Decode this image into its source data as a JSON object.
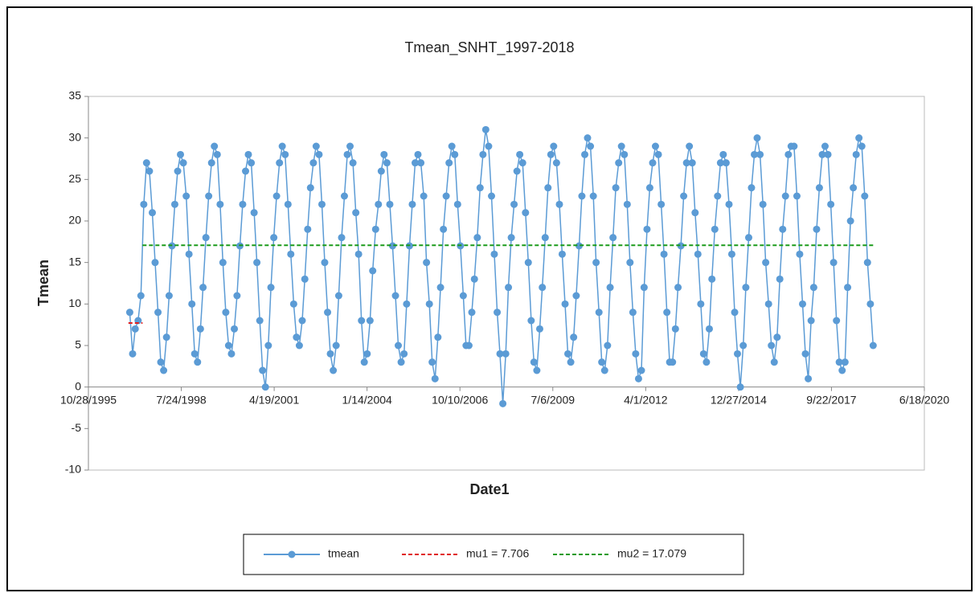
{
  "chart_data": {
    "type": "line",
    "title": "Tmean_SNHT_1997-2018",
    "x_label": "Date1",
    "y_label": "Tmean",
    "xlim": [
      "10/28/1995",
      "6/18/2020"
    ],
    "xticks": [
      "10/28/1995",
      "7/24/1998",
      "4/19/2001",
      "1/14/2004",
      "10/10/2006",
      "7/6/2009",
      "4/1/2012",
      "12/27/2014",
      "9/22/2017",
      "6/18/2020"
    ],
    "ylim": [
      -10,
      35
    ],
    "yticks": [
      -10,
      -5,
      0,
      5,
      10,
      15,
      20,
      25,
      30,
      35
    ],
    "legend": "bottom",
    "series": [
      {
        "name": "tmean",
        "color": "#5b9bd5",
        "style": "marker-line",
        "x": [
          "1/15/1997",
          "2/15/1997",
          "3/15/1997",
          "4/15/1997",
          "5/15/1997",
          "6/15/1997",
          "7/15/1997",
          "8/15/1997",
          "9/15/1997",
          "10/15/1997",
          "11/15/1997",
          "12/15/1997",
          "1/15/1998",
          "2/15/1998",
          "3/15/1998",
          "4/15/1998",
          "5/15/1998",
          "6/15/1998",
          "7/15/1998",
          "8/15/1998",
          "9/15/1998",
          "10/15/1998",
          "11/15/1998",
          "12/15/1998",
          "1/15/1999",
          "2/15/1999",
          "3/15/1999",
          "4/15/1999",
          "5/15/1999",
          "6/15/1999",
          "7/15/1999",
          "8/15/1999",
          "9/15/1999",
          "10/15/1999",
          "11/15/1999",
          "12/15/1999",
          "1/15/2000",
          "2/15/2000",
          "3/15/2000",
          "4/15/2000",
          "5/15/2000",
          "6/15/2000",
          "7/15/2000",
          "8/15/2000",
          "9/15/2000",
          "10/15/2000",
          "11/15/2000",
          "12/15/2000",
          "1/15/2001",
          "2/15/2001",
          "3/15/2001",
          "4/15/2001",
          "5/15/2001",
          "6/15/2001",
          "7/15/2001",
          "8/15/2001",
          "9/15/2001",
          "10/15/2001",
          "11/15/2001",
          "12/15/2001",
          "1/15/2002",
          "2/15/2002",
          "3/15/2002",
          "4/15/2002",
          "5/15/2002",
          "6/15/2002",
          "7/15/2002",
          "8/15/2002",
          "9/15/2002",
          "10/15/2002",
          "11/15/2002",
          "12/15/2002",
          "1/15/2003",
          "2/15/2003",
          "3/15/2003",
          "4/15/2003",
          "5/15/2003",
          "6/15/2003",
          "7/15/2003",
          "8/15/2003",
          "9/15/2003",
          "10/15/2003",
          "11/15/2003",
          "12/15/2003",
          "1/15/2004",
          "2/15/2004",
          "3/15/2004",
          "4/15/2004",
          "5/15/2004",
          "6/15/2004",
          "7/15/2004",
          "8/15/2004",
          "9/15/2004",
          "10/15/2004",
          "11/15/2004",
          "12/15/2004",
          "1/15/2005",
          "2/15/2005",
          "3/15/2005",
          "4/15/2005",
          "5/15/2005",
          "6/15/2005",
          "7/15/2005",
          "8/15/2005",
          "9/15/2005",
          "10/15/2005",
          "11/15/2005",
          "12/15/2005",
          "1/15/2006",
          "2/15/2006",
          "3/15/2006",
          "4/15/2006",
          "5/15/2006",
          "6/15/2006",
          "7/15/2006",
          "8/15/2006",
          "9/15/2006",
          "10/15/2006",
          "11/15/2006",
          "12/15/2006",
          "1/15/2007",
          "2/15/2007",
          "3/15/2007",
          "4/15/2007",
          "5/15/2007",
          "6/15/2007",
          "7/15/2007",
          "8/15/2007",
          "9/15/2007",
          "10/15/2007",
          "11/15/2007",
          "12/15/2007",
          "1/15/2008",
          "2/15/2008",
          "3/15/2008",
          "4/15/2008",
          "5/15/2008",
          "6/15/2008",
          "7/15/2008",
          "8/15/2008",
          "9/15/2008",
          "10/15/2008",
          "11/15/2008",
          "12/15/2008",
          "1/15/2009",
          "2/15/2009",
          "3/15/2009",
          "4/15/2009",
          "5/15/2009",
          "6/15/2009",
          "7/15/2009",
          "8/15/2009",
          "9/15/2009",
          "10/15/2009",
          "11/15/2009",
          "12/15/2009",
          "1/15/2010",
          "2/15/2010",
          "3/15/2010",
          "4/15/2010",
          "5/15/2010",
          "6/15/2010",
          "7/15/2010",
          "8/15/2010",
          "9/15/2010",
          "10/15/2010",
          "11/15/2010",
          "12/15/2010",
          "1/15/2011",
          "2/15/2011",
          "3/15/2011",
          "4/15/2011",
          "5/15/2011",
          "6/15/2011",
          "7/15/2011",
          "8/15/2011",
          "9/15/2011",
          "10/15/2011",
          "11/15/2011",
          "12/15/2011",
          "1/15/2012",
          "2/15/2012",
          "3/15/2012",
          "4/15/2012",
          "5/15/2012",
          "6/15/2012",
          "7/15/2012",
          "8/15/2012",
          "9/15/2012",
          "10/15/2012",
          "11/15/2012",
          "12/15/2012",
          "1/15/2013",
          "2/15/2013",
          "3/15/2013",
          "4/15/2013",
          "5/15/2013",
          "6/15/2013",
          "7/15/2013",
          "8/15/2013",
          "9/15/2013",
          "10/15/2013",
          "11/15/2013",
          "12/15/2013",
          "1/15/2014",
          "2/15/2014",
          "3/15/2014",
          "4/15/2014",
          "5/15/2014",
          "6/15/2014",
          "7/15/2014",
          "8/15/2014",
          "9/15/2014",
          "10/15/2014",
          "11/15/2014",
          "12/15/2014",
          "1/15/2015",
          "2/15/2015",
          "3/15/2015",
          "4/15/2015",
          "5/15/2015",
          "6/15/2015",
          "7/15/2015",
          "8/15/2015",
          "9/15/2015",
          "10/15/2015",
          "11/15/2015",
          "12/15/2015",
          "1/15/2016",
          "2/15/2016",
          "3/15/2016",
          "4/15/2016",
          "5/15/2016",
          "6/15/2016",
          "7/15/2016",
          "8/15/2016",
          "9/15/2016",
          "10/15/2016",
          "11/15/2016",
          "12/15/2016",
          "1/15/2017",
          "2/15/2017",
          "3/15/2017",
          "4/15/2017",
          "5/15/2017",
          "6/15/2017",
          "7/15/2017",
          "8/15/2017",
          "9/15/2017",
          "10/15/2017",
          "11/15/2017",
          "12/15/2017",
          "1/15/2018",
          "2/15/2018",
          "3/15/2018",
          "4/15/2018",
          "5/15/2018",
          "6/15/2018",
          "7/15/2018",
          "8/15/2018",
          "9/15/2018",
          "10/15/2018",
          "11/15/2018",
          "12/15/2018"
        ],
        "values": [
          9,
          4,
          7,
          8,
          11,
          22,
          27,
          26,
          21,
          15,
          9,
          3,
          2,
          6,
          11,
          17,
          22,
          26,
          28,
          27,
          23,
          16,
          10,
          4,
          3,
          7,
          12,
          18,
          23,
          27,
          29,
          28,
          22,
          15,
          9,
          5,
          4,
          7,
          11,
          17,
          22,
          26,
          28,
          27,
          21,
          15,
          8,
          2,
          0,
          5,
          12,
          18,
          23,
          27,
          29,
          28,
          22,
          16,
          10,
          6,
          5,
          8,
          13,
          19,
          24,
          27,
          29,
          28,
          22,
          15,
          9,
          4,
          2,
          5,
          11,
          18,
          23,
          28,
          29,
          27,
          21,
          16,
          8,
          3,
          4,
          8,
          14,
          19,
          22,
          26,
          28,
          27,
          22,
          17,
          11,
          5,
          3,
          4,
          10,
          17,
          22,
          27,
          28,
          27,
          23,
          15,
          10,
          3,
          1,
          6,
          12,
          19,
          23,
          27,
          29,
          28,
          22,
          17,
          11,
          5,
          5,
          9,
          13,
          18,
          24,
          28,
          31,
          29,
          23,
          16,
          9,
          4,
          -2,
          4,
          12,
          18,
          22,
          26,
          28,
          27,
          21,
          15,
          8,
          3,
          2,
          7,
          12,
          18,
          24,
          28,
          29,
          27,
          22,
          16,
          10,
          4,
          3,
          6,
          11,
          17,
          23,
          28,
          30,
          29,
          23,
          15,
          9,
          3,
          2,
          5,
          12,
          18,
          24,
          27,
          29,
          28,
          22,
          15,
          9,
          4,
          1,
          2,
          12,
          19,
          24,
          27,
          29,
          28,
          22,
          16,
          9,
          3,
          3,
          7,
          12,
          17,
          23,
          27,
          29,
          27,
          21,
          16,
          10,
          4,
          3,
          7,
          13,
          19,
          23,
          27,
          28,
          27,
          22,
          16,
          9,
          4,
          0,
          5,
          12,
          18,
          24,
          28,
          30,
          28,
          22,
          15,
          10,
          5,
          3,
          6,
          13,
          19,
          23,
          28,
          29,
          29,
          23,
          16,
          10,
          4,
          1,
          8,
          12,
          19,
          24,
          28,
          29,
          28,
          22,
          15,
          8,
          3,
          2,
          3,
          12,
          20,
          24,
          28,
          30,
          29,
          23,
          15,
          10,
          5
        ]
      },
      {
        "name": "mu1 = 7.706",
        "color": "#e02020",
        "style": "dashed",
        "x": [
          "1/1/1997",
          "6/1/1997"
        ],
        "values": [
          7.706,
          7.706
        ]
      },
      {
        "name": "mu2 = 17.079",
        "color": "#1a9a1a",
        "style": "dashed",
        "x": [
          "6/1/1997",
          "12/31/2018"
        ],
        "values": [
          17.079,
          17.079
        ]
      }
    ]
  }
}
